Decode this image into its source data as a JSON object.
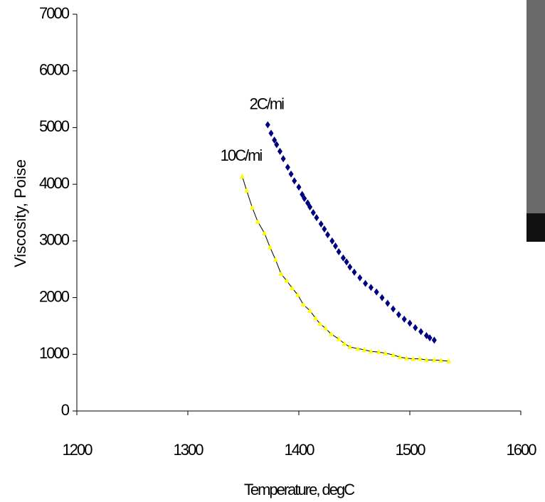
{
  "chart_data": {
    "type": "scatter",
    "xlabel": "Temperature, degC",
    "ylabel": "Viscosity, Poise",
    "xlim": [
      1200,
      1600
    ],
    "xticks": [
      1200,
      1300,
      1400,
      1500,
      1600
    ],
    "ylim": [
      0,
      7000
    ],
    "yticks": [
      0,
      1000,
      2000,
      3000,
      4000,
      5000,
      6000,
      7000
    ],
    "series": [
      {
        "name": "2C/mi",
        "color": "#000080",
        "marker": "diamond",
        "x": [
          1372,
          1375,
          1378,
          1380,
          1383,
          1386,
          1390,
          1393,
          1396,
          1400,
          1403,
          1405,
          1408,
          1410,
          1413,
          1416,
          1420,
          1423,
          1426,
          1430,
          1433,
          1436,
          1440,
          1443,
          1446,
          1450,
          1455,
          1460,
          1465,
          1470,
          1475,
          1480,
          1485,
          1490,
          1495,
          1500,
          1505,
          1510,
          1515,
          1518,
          1522
        ],
        "values": [
          5050,
          4900,
          4780,
          4700,
          4580,
          4450,
          4300,
          4180,
          4060,
          3950,
          3820,
          3750,
          3670,
          3600,
          3500,
          3410,
          3300,
          3210,
          3110,
          3000,
          2910,
          2810,
          2700,
          2630,
          2540,
          2450,
          2350,
          2250,
          2180,
          2100,
          2000,
          1900,
          1800,
          1700,
          1620,
          1550,
          1470,
          1400,
          1330,
          1290,
          1250
        ]
      },
      {
        "name": "10C/mi",
        "color": "#ffff00",
        "marker": "triangle",
        "line_color": "#000000",
        "x": [
          1349,
          1353,
          1358,
          1363,
          1369,
          1374,
          1379,
          1384,
          1389,
          1394,
          1399,
          1404,
          1410,
          1415,
          1419,
          1424,
          1429,
          1436,
          1441,
          1446,
          1453,
          1459,
          1465,
          1472,
          1478,
          1485,
          1491,
          1497,
          1503,
          1509,
          1515,
          1522,
          1528,
          1535
        ],
        "values": [
          4140,
          3890,
          3590,
          3340,
          3140,
          2890,
          2670,
          2420,
          2300,
          2170,
          2050,
          1880,
          1770,
          1640,
          1540,
          1460,
          1360,
          1270,
          1190,
          1130,
          1100,
          1080,
          1050,
          1040,
          1020,
          990,
          950,
          930,
          920,
          920,
          900,
          900,
          890,
          880
        ]
      }
    ]
  }
}
